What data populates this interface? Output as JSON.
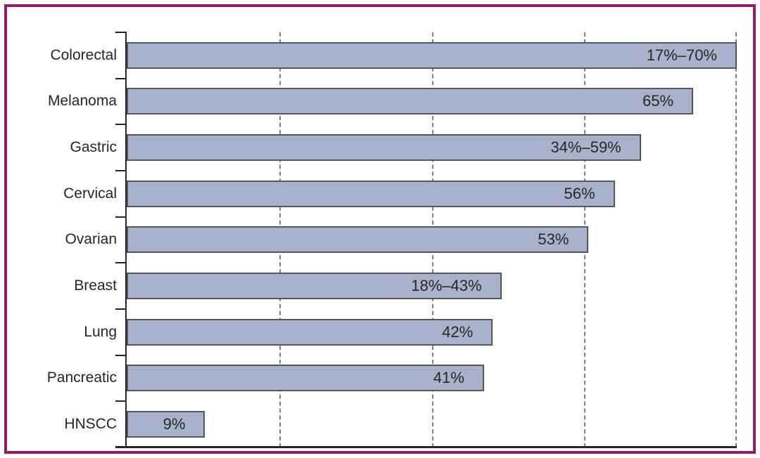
{
  "figure": {
    "border_color": "#8e2163",
    "background": "#ffffff"
  },
  "chart_data": {
    "type": "bar",
    "orientation": "horizontal",
    "title": "",
    "xlabel": "",
    "ylabel": "",
    "categories": [
      "Colorectal",
      "Melanoma",
      "Gastric",
      "Cervical",
      "Ovarian",
      "Breast",
      "Lung",
      "Pancreatic",
      "HNSCC"
    ],
    "values": [
      70,
      65,
      59,
      56,
      53,
      43,
      42,
      41,
      9
    ],
    "value_labels": [
      "17%–70%",
      "65%",
      "34%–59%",
      "56%",
      "53%",
      "18%–43%",
      "42%",
      "41%",
      "9%"
    ],
    "xlim": [
      0,
      70
    ],
    "gridline_values": [
      17.5,
      35,
      52.5,
      70
    ],
    "grid_style": "dashed",
    "legend": "none",
    "value_label_position": "inside-end",
    "colors": {
      "bar_fill": "#a9b2cb",
      "bar_border": "#55565c",
      "grid": "#7f7f7f",
      "axis": "#262626",
      "text": "#262626"
    }
  }
}
